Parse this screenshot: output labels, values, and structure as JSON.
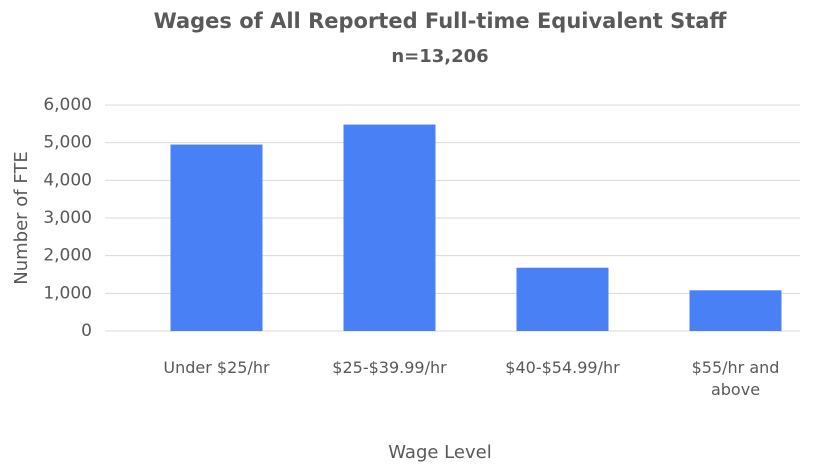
{
  "chart_data": {
    "type": "bar",
    "title": "Wages of All Reported Full-time Equivalent Staff",
    "subtitle": "n=13,206",
    "x_label": "Wage Level",
    "y_label": "Number of FTE",
    "categories": [
      "Under $25/hr",
      "$25-$39.99/hr",
      "$40-$54.99/hr",
      "$55/hr and above"
    ],
    "values": [
      4950,
      5480,
      1680,
      1080
    ],
    "color": "#4a80f6",
    "ylim": [
      0,
      6000
    ],
    "yticks": [
      0,
      {
        "value": 1000,
        "label": "1,000"
      },
      {
        "value": 2000,
        "label": "2,000"
      },
      {
        "value": 3000,
        "label": "3,000"
      },
      {
        "value": 4000,
        "label": "4,000"
      },
      {
        "value": 5000,
        "label": "5,000"
      },
      {
        "value": 6000,
        "label": "6,000"
      }
    ],
    "grid": true
  }
}
